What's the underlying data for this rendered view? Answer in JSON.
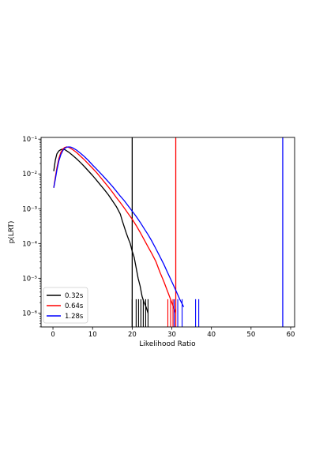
{
  "chart_data": {
    "type": "line",
    "title": "",
    "xlabel": "Likelihood Ratio",
    "ylabel": "p(LRT)",
    "xlim": [
      -3,
      61
    ],
    "ylim_log10": [
      -6.4,
      -0.95
    ],
    "x_ticks": [
      0,
      10,
      20,
      30,
      40,
      50,
      60
    ],
    "y_ticks": [
      {
        "value": 0.1,
        "label": "10⁻¹"
      },
      {
        "value": 0.01,
        "label": "10⁻²"
      },
      {
        "value": 0.001,
        "label": "10⁻³"
      },
      {
        "value": 0.0001,
        "label": "10⁻⁴"
      },
      {
        "value": 1e-05,
        "label": "10⁻⁵"
      },
      {
        "value": 1e-06,
        "label": "10⁻⁶"
      }
    ],
    "y_scale": "log",
    "grid": false,
    "legend_position": "lower-left",
    "series": [
      {
        "name": "0.32s",
        "color": "#000000",
        "threshold": 20,
        "points": [
          [
            0.2,
            0.012
          ],
          [
            0.6,
            0.025
          ],
          [
            1.0,
            0.038
          ],
          [
            1.5,
            0.046
          ],
          [
            2.0,
            0.05
          ],
          [
            2.5,
            0.052
          ],
          [
            3.0,
            0.05
          ],
          [
            4.0,
            0.042
          ],
          [
            5.0,
            0.034
          ],
          [
            6.0,
            0.027
          ],
          [
            7.0,
            0.021
          ],
          [
            8.0,
            0.016
          ],
          [
            9.0,
            0.012
          ],
          [
            10.0,
            0.009
          ],
          [
            11.0,
            0.0066
          ],
          [
            12.0,
            0.0048
          ],
          [
            13.0,
            0.0035
          ],
          [
            14.0,
            0.0025
          ],
          [
            15.0,
            0.0017
          ],
          [
            16.0,
            0.00115
          ],
          [
            17.0,
            0.0007
          ],
          [
            17.5,
            0.00045
          ],
          [
            18.0,
            0.0003
          ],
          [
            18.5,
            0.0002
          ],
          [
            19.0,
            0.00014
          ],
          [
            19.5,
            0.0001
          ],
          [
            20.0,
            6e-05
          ],
          [
            20.5,
            4e-05
          ],
          [
            21.0,
            2e-05
          ],
          [
            21.5,
            1e-05
          ],
          [
            22.0,
            6e-06
          ],
          [
            22.5,
            3e-06
          ],
          [
            23.0,
            2e-06
          ],
          [
            23.5,
            1.5e-06
          ],
          [
            24.0,
            1e-06
          ]
        ],
        "spikes": [
          20.0,
          21.0,
          21.6,
          22.2,
          22.8,
          23.4,
          24.0
        ]
      },
      {
        "name": "0.64s",
        "color": "#ff0000",
        "threshold": 31,
        "points": [
          [
            0.2,
            0.004
          ],
          [
            0.6,
            0.008
          ],
          [
            1.0,
            0.015
          ],
          [
            1.5,
            0.028
          ],
          [
            2.0,
            0.042
          ],
          [
            2.5,
            0.052
          ],
          [
            3.0,
            0.058
          ],
          [
            3.5,
            0.06
          ],
          [
            4.0,
            0.058
          ],
          [
            5.0,
            0.05
          ],
          [
            6.0,
            0.041
          ],
          [
            7.0,
            0.032
          ],
          [
            8.0,
            0.025
          ],
          [
            9.0,
            0.019
          ],
          [
            10.0,
            0.0145
          ],
          [
            11.0,
            0.011
          ],
          [
            12.0,
            0.008
          ],
          [
            13.0,
            0.0058
          ],
          [
            14.0,
            0.0042
          ],
          [
            15.0,
            0.003
          ],
          [
            16.0,
            0.0021
          ],
          [
            17.0,
            0.0015
          ],
          [
            18.0,
            0.00105
          ],
          [
            19.0,
            0.00072
          ],
          [
            20.0,
            0.0005
          ],
          [
            21.0,
            0.00033
          ],
          [
            22.0,
            0.00021
          ],
          [
            23.0,
            0.00013
          ],
          [
            24.0,
            8e-05
          ],
          [
            25.0,
            5e-05
          ],
          [
            26.0,
            3e-05
          ],
          [
            27.0,
            1.5e-05
          ],
          [
            28.0,
            8e-06
          ],
          [
            29.0,
            4e-06
          ],
          [
            30.0,
            2e-06
          ],
          [
            31.0,
            1e-06
          ]
        ],
        "spikes": [
          29.0,
          29.7,
          30.3
        ]
      },
      {
        "name": "1.28s",
        "color": "#0000ff",
        "threshold": 58,
        "points": [
          [
            0.2,
            0.004
          ],
          [
            0.6,
            0.007
          ],
          [
            1.0,
            0.013
          ],
          [
            1.5,
            0.024
          ],
          [
            2.0,
            0.036
          ],
          [
            2.5,
            0.047
          ],
          [
            3.0,
            0.055
          ],
          [
            3.5,
            0.059
          ],
          [
            4.0,
            0.06
          ],
          [
            4.5,
            0.059
          ],
          [
            5.0,
            0.056
          ],
          [
            6.0,
            0.048
          ],
          [
            7.0,
            0.039
          ],
          [
            8.0,
            0.031
          ],
          [
            9.0,
            0.024
          ],
          [
            10.0,
            0.018
          ],
          [
            11.0,
            0.0138
          ],
          [
            12.0,
            0.0105
          ],
          [
            13.0,
            0.0079
          ],
          [
            14.0,
            0.0059
          ],
          [
            15.0,
            0.0044
          ],
          [
            16.0,
            0.0032
          ],
          [
            17.0,
            0.0023
          ],
          [
            18.0,
            0.0017
          ],
          [
            19.0,
            0.0012
          ],
          [
            20.0,
            0.00085
          ],
          [
            21.0,
            0.0006
          ],
          [
            22.0,
            0.00041
          ],
          [
            23.0,
            0.00027
          ],
          [
            24.0,
            0.00018
          ],
          [
            25.0,
            0.000115
          ],
          [
            26.0,
            7e-05
          ],
          [
            27.0,
            4.2e-05
          ],
          [
            28.0,
            2.5e-05
          ],
          [
            29.0,
            1.4e-05
          ],
          [
            30.0,
            8e-06
          ],
          [
            31.0,
            4.5e-06
          ],
          [
            32.0,
            2.5e-06
          ],
          [
            33.0,
            1.5e-06
          ]
        ],
        "spikes": [
          30.6,
          31.5,
          32.6,
          36.0,
          36.8
        ]
      }
    ]
  }
}
